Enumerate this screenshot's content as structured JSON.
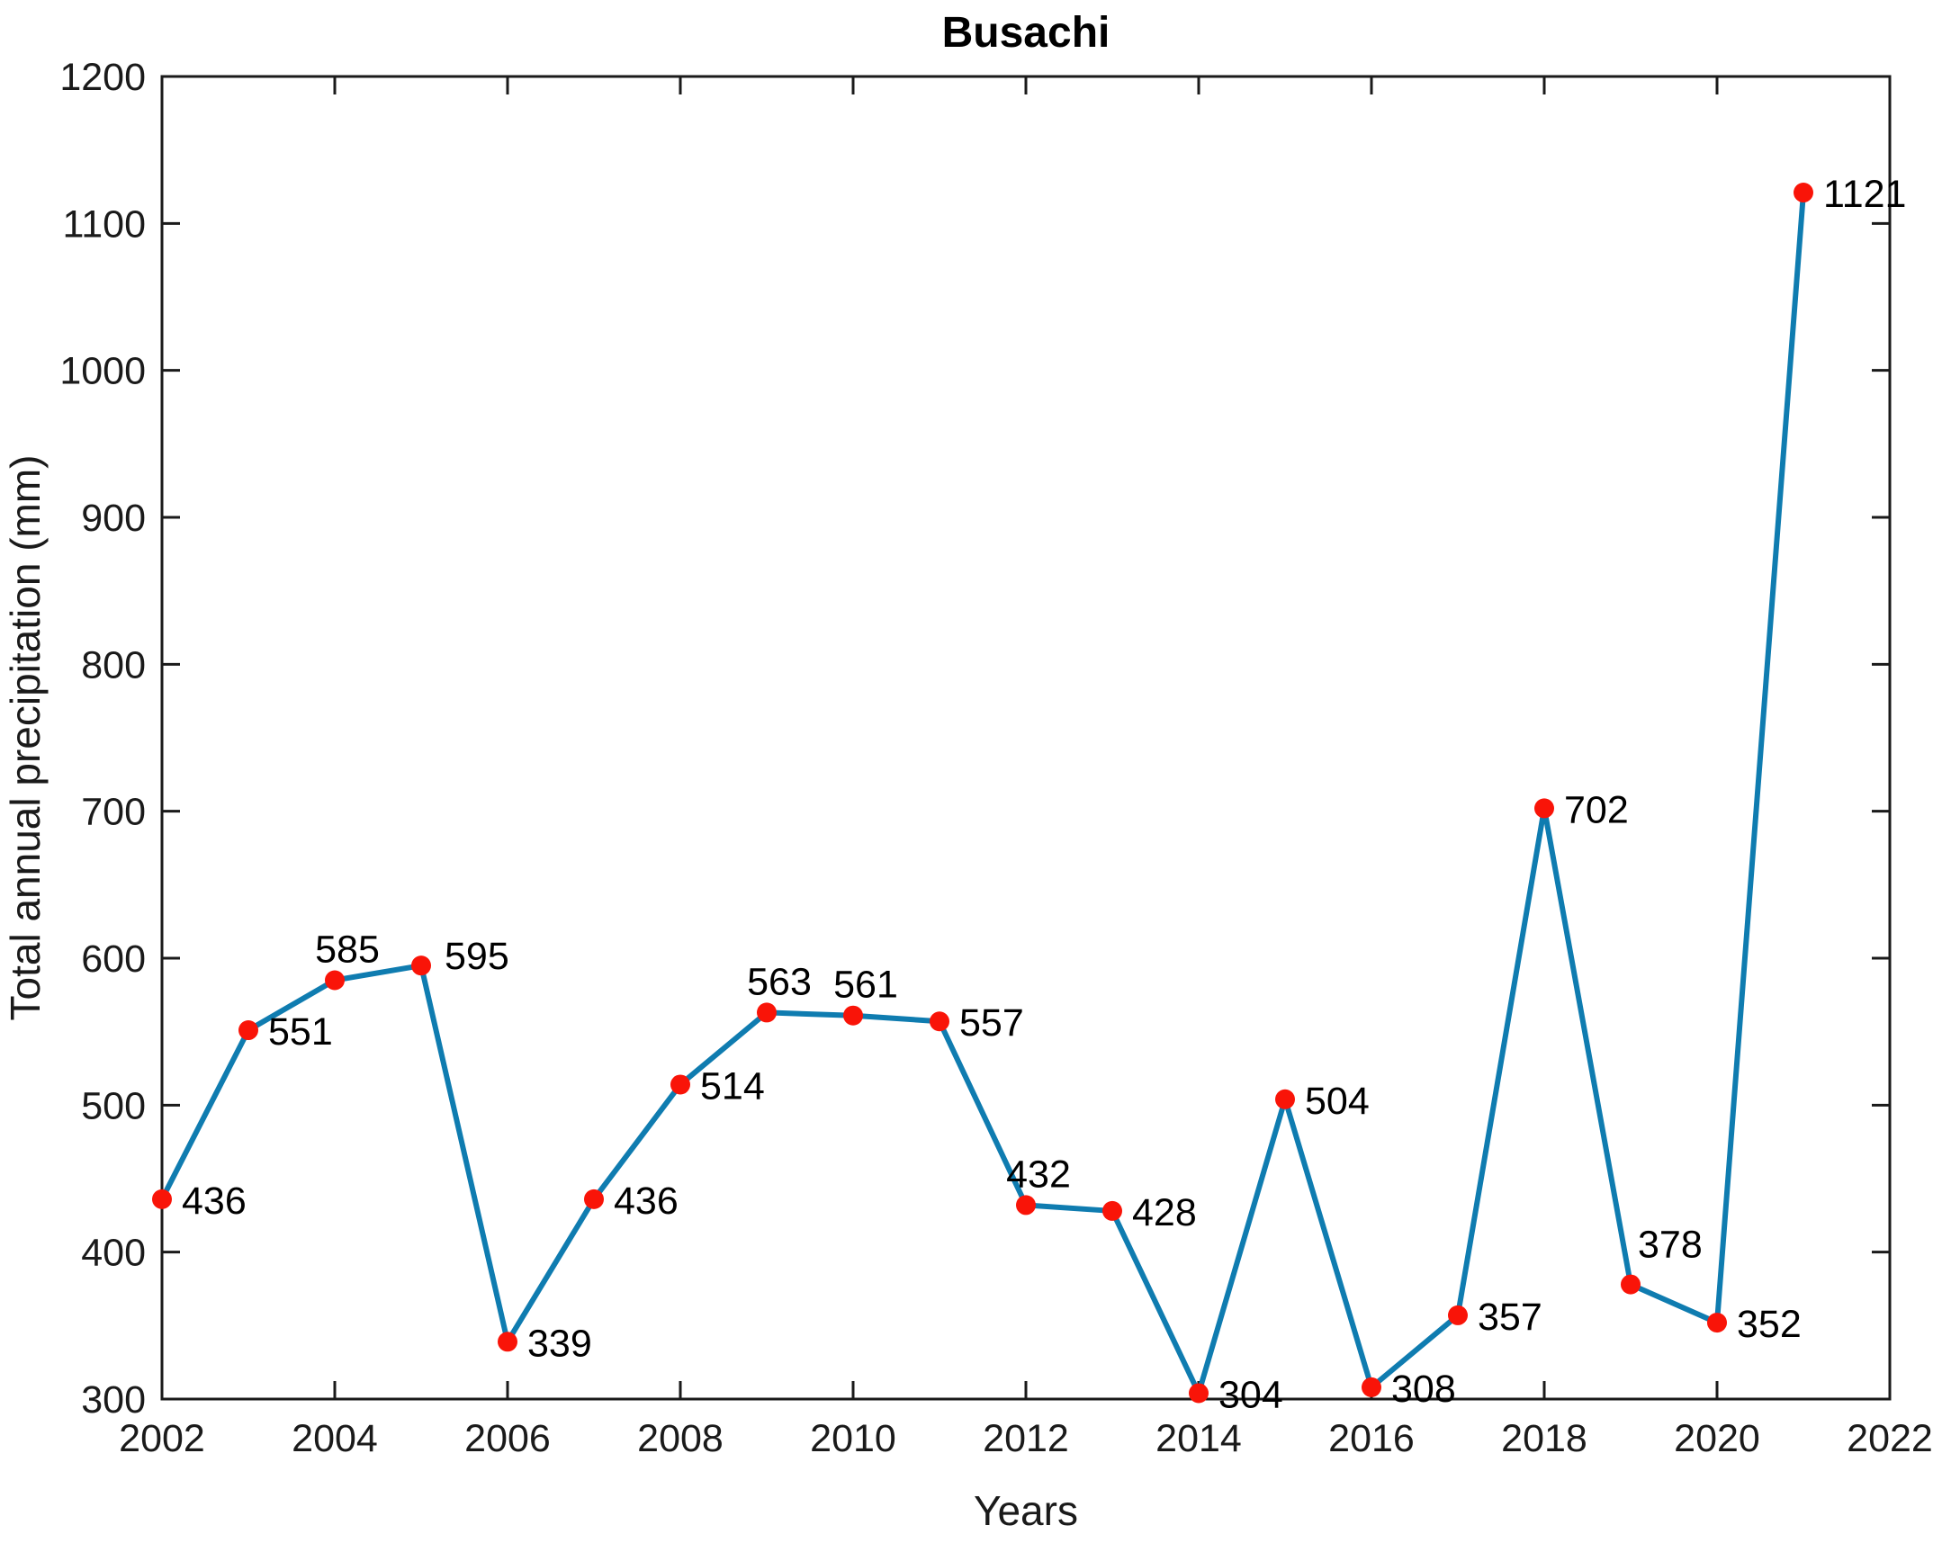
{
  "figure": {
    "title": "Busachi"
  },
  "chart_data": {
    "type": "line",
    "title": "Busachi",
    "xlabel": "Years",
    "ylabel": "Total annual precipitation (mm)",
    "xlim": [
      2002,
      2022
    ],
    "ylim": [
      300,
      1200
    ],
    "x_ticks": [
      2002,
      2004,
      2006,
      2008,
      2010,
      2012,
      2014,
      2016,
      2018,
      2020,
      2022
    ],
    "y_ticks": [
      300,
      400,
      500,
      600,
      700,
      800,
      900,
      1000,
      1100,
      1200
    ],
    "grid": false,
    "legend": "none",
    "frame": "box-with-inward-ticks",
    "series": [
      {
        "name": "Total annual precipitation",
        "x": [
          2002,
          2003,
          2004,
          2005,
          2006,
          2007,
          2008,
          2009,
          2010,
          2011,
          2012,
          2013,
          2014,
          2015,
          2016,
          2017,
          2018,
          2019,
          2020,
          2021
        ],
        "y": [
          436,
          551,
          585,
          595,
          339,
          436,
          514,
          563,
          561,
          557,
          432,
          428,
          304,
          504,
          308,
          357,
          702,
          378,
          352,
          1121
        ],
        "point_labels": [
          "436",
          "551",
          "585",
          "595",
          "339",
          "436",
          "514",
          "563",
          "561",
          "557",
          "432",
          "428",
          "304",
          "504",
          "308",
          "357",
          "702",
          "378",
          "352",
          "1121"
        ],
        "label_placement": [
          "right",
          "right",
          "above",
          "right-up",
          "right",
          "right",
          "right",
          "above",
          "above",
          "right",
          "above",
          "right",
          "right",
          "right",
          "right",
          "right",
          "right",
          "above-right",
          "right",
          "right"
        ]
      }
    ],
    "colors": {
      "line": "#0f7cb0",
      "marker": "#f91408",
      "axis": "#1a1a1a",
      "tick_text": "#1a1a1a",
      "point_label_text": "#000000",
      "background": "#ffffff"
    }
  }
}
